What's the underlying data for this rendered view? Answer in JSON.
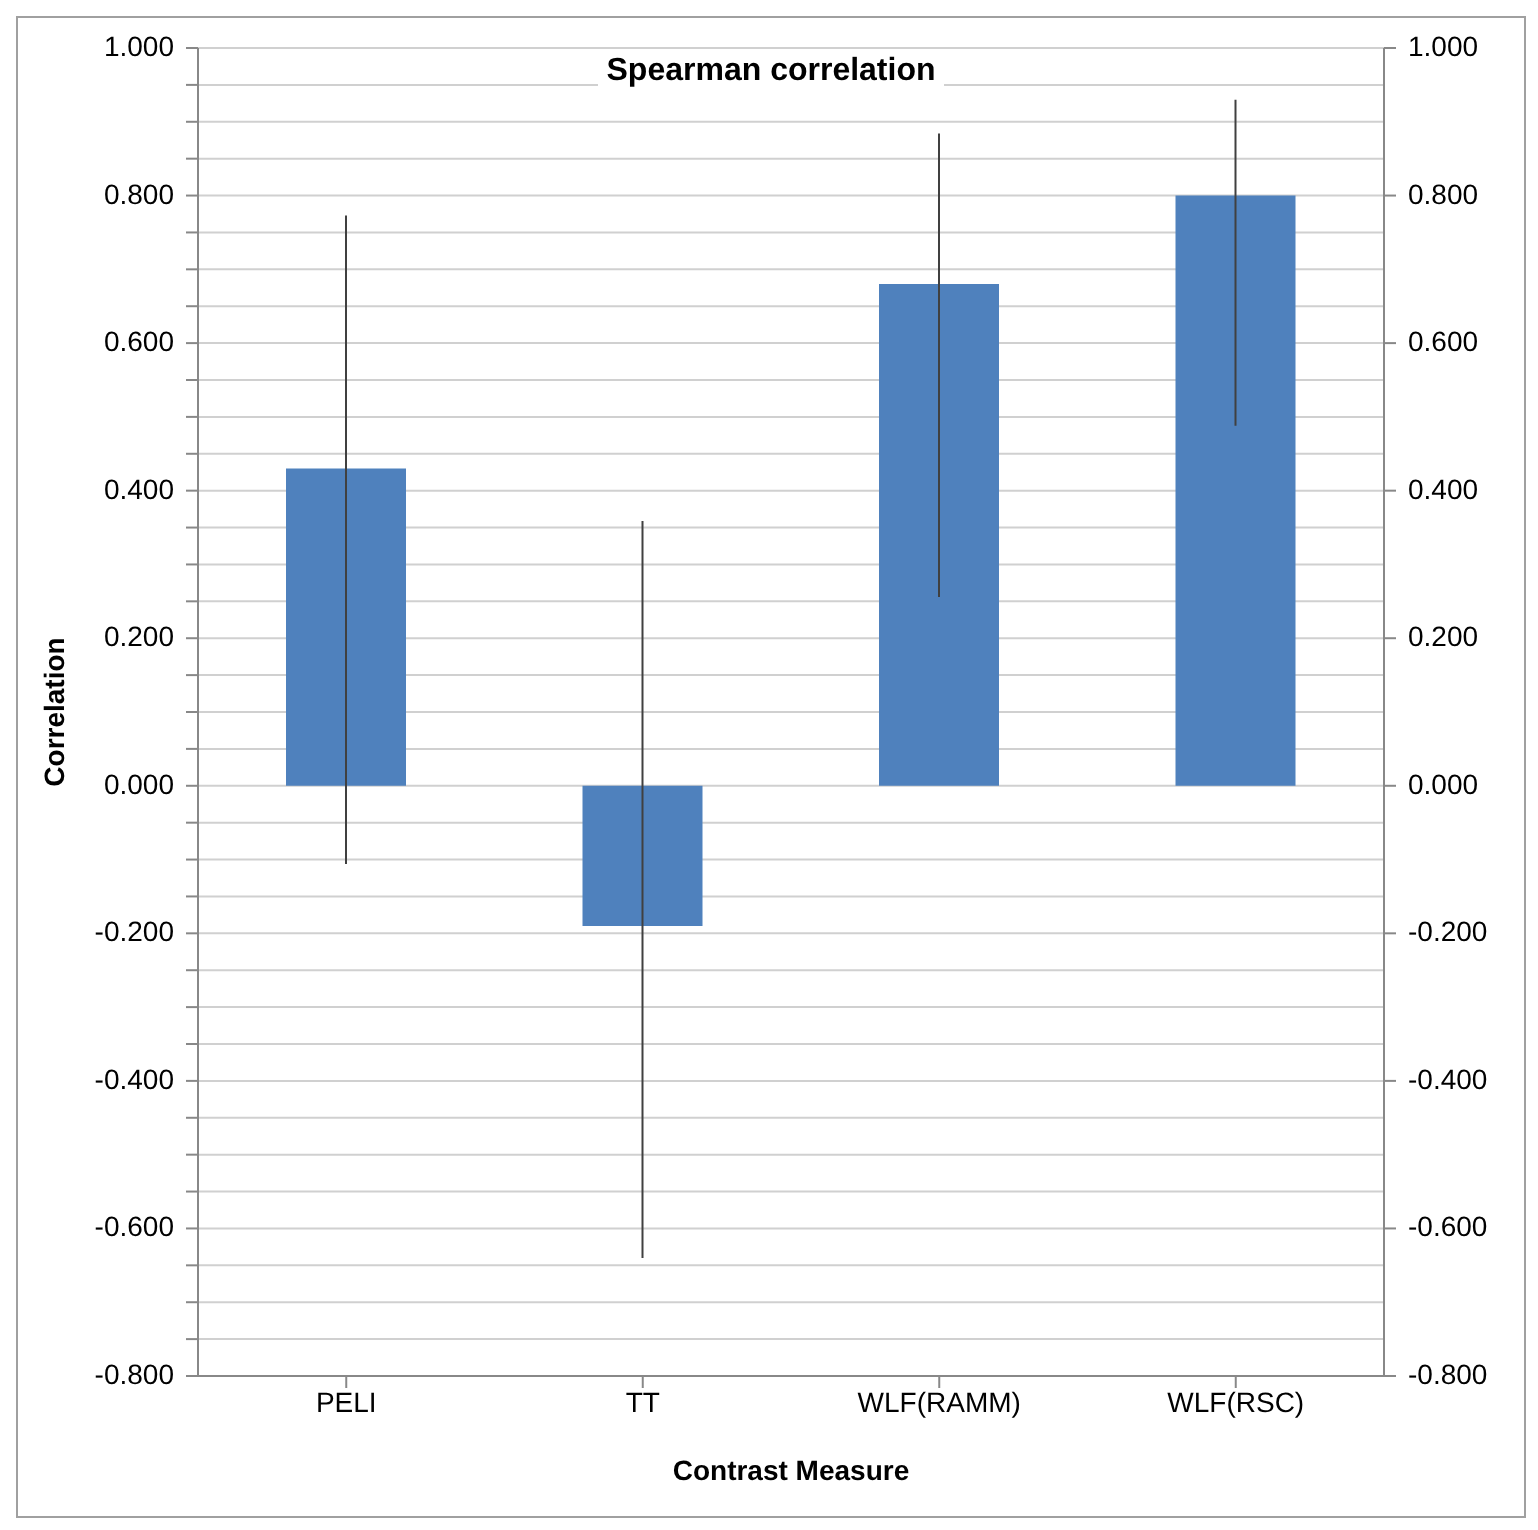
{
  "chart_data": {
    "type": "bar",
    "title": "Spearman correlation",
    "xlabel": "Contrast Measure",
    "ylabel": "Correlation",
    "categories": [
      "PELI",
      "TT",
      "WLF(RAMM)",
      "WLF(RSC)"
    ],
    "values": [
      0.43,
      -0.19,
      0.68,
      0.8
    ],
    "errors": [
      [
        -0.106,
        0.773
      ],
      [
        -0.64,
        0.359
      ],
      [
        0.256,
        0.884
      ],
      [
        0.488,
        0.93
      ]
    ],
    "color": "#4f81bd",
    "ylim": [
      -0.8,
      1.0
    ],
    "yticks": [
      {
        "value": -0.8,
        "label": "-0.800"
      },
      {
        "value": -0.75,
        "label": null
      },
      {
        "value": -0.7,
        "label": null
      },
      {
        "value": -0.65,
        "label": null
      },
      {
        "value": -0.6,
        "label": "-0.600"
      },
      {
        "value": -0.55,
        "label": null
      },
      {
        "value": -0.5,
        "label": null
      },
      {
        "value": -0.45,
        "label": null
      },
      {
        "value": -0.4,
        "label": "-0.400"
      },
      {
        "value": -0.35,
        "label": null
      },
      {
        "value": -0.3,
        "label": null
      },
      {
        "value": -0.25,
        "label": null
      },
      {
        "value": -0.2,
        "label": "-0.200"
      },
      {
        "value": -0.15,
        "label": null
      },
      {
        "value": -0.1,
        "label": null
      },
      {
        "value": -0.05,
        "label": null
      },
      {
        "value": 0,
        "label": "0.000"
      },
      {
        "value": 0.05,
        "label": null
      },
      {
        "value": 0.1,
        "label": null
      },
      {
        "value": 0.15,
        "label": null
      },
      {
        "value": 0.2,
        "label": "0.200"
      },
      {
        "value": 0.25,
        "label": null
      },
      {
        "value": 0.3,
        "label": null
      },
      {
        "value": 0.35,
        "label": null
      },
      {
        "value": 0.4,
        "label": "0.400"
      },
      {
        "value": 0.45,
        "label": null
      },
      {
        "value": 0.5,
        "label": null
      },
      {
        "value": 0.55,
        "label": null
      },
      {
        "value": 0.6,
        "label": "0.600"
      },
      {
        "value": 0.65,
        "label": null
      },
      {
        "value": 0.7,
        "label": null
      },
      {
        "value": 0.75,
        "label": null
      },
      {
        "value": 0.8,
        "label": "0.800"
      },
      {
        "value": 0.85,
        "label": null
      },
      {
        "value": 0.9,
        "label": null
      },
      {
        "value": 0.95,
        "label": null
      },
      {
        "value": 1.0,
        "label": "1.000"
      }
    ],
    "y2lim": [
      -0.8,
      1.0
    ],
    "y2ticks": [
      {
        "value": -0.8,
        "label": "-0.800"
      },
      {
        "value": -0.6,
        "label": "-0.600"
      },
      {
        "value": -0.4,
        "label": "-0.400"
      },
      {
        "value": -0.2,
        "label": "-0.200"
      },
      {
        "value": 0,
        "label": "0.000"
      },
      {
        "value": 0.2,
        "label": "0.200"
      },
      {
        "value": 0.4,
        "label": "0.400"
      },
      {
        "value": 0.6,
        "label": "0.600"
      },
      {
        "value": 0.8,
        "label": "0.800"
      },
      {
        "value": 1.0,
        "label": "1.000"
      }
    ],
    "grid": "y"
  }
}
